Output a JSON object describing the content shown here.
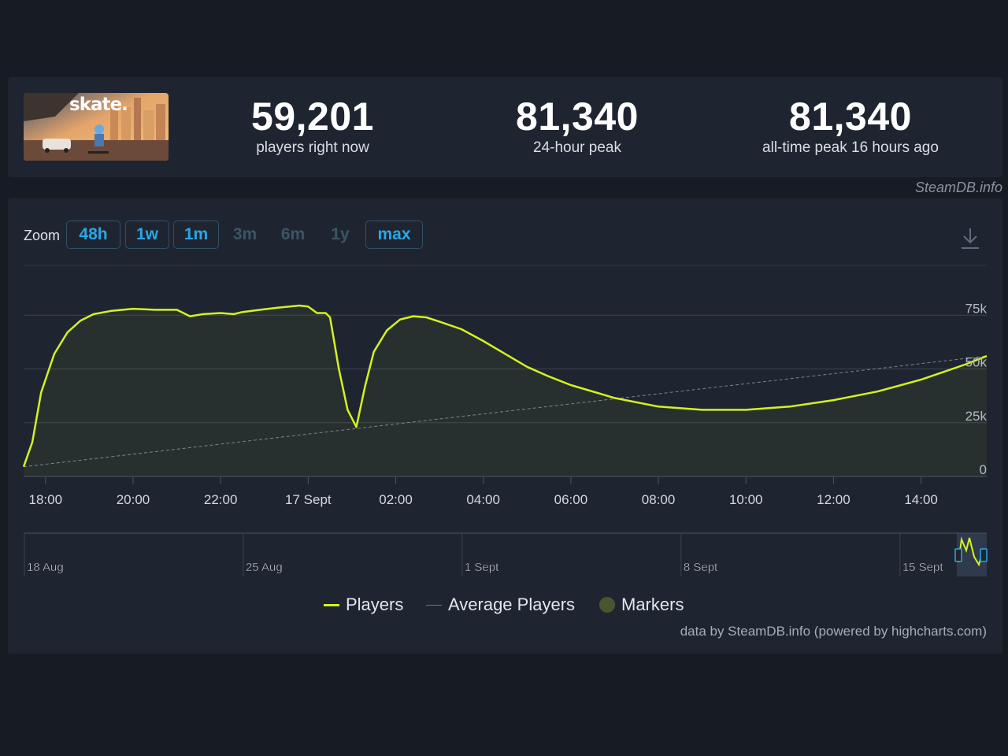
{
  "game": {
    "title": "skate.",
    "thumbnail_icon": "game-cover-image"
  },
  "stats": [
    {
      "value": "59,201",
      "label": "players right now"
    },
    {
      "value": "81,340",
      "label": "24-hour peak"
    },
    {
      "value": "81,340",
      "label": "all-time peak 16 hours ago"
    }
  ],
  "credit": "SteamDB.info",
  "zoom": {
    "label": "Zoom",
    "buttons": [
      {
        "label": "48h",
        "enabled": true
      },
      {
        "label": "1w",
        "enabled": true
      },
      {
        "label": "1m",
        "enabled": true
      },
      {
        "label": "3m",
        "enabled": false
      },
      {
        "label": "6m",
        "enabled": false
      },
      {
        "label": "1y",
        "enabled": false
      },
      {
        "label": "max",
        "enabled": true
      }
    ]
  },
  "download_icon": "download-icon",
  "colors": {
    "players_line": "#d4f21f",
    "average_line": "#9aa3b0",
    "markers": "#4a5530",
    "accent": "#2aa7e6",
    "background": "#171b23",
    "panel": "#1f2530"
  },
  "chart_data": {
    "type": "line",
    "x_tick_labels": [
      "18:00",
      "20:00",
      "22:00",
      "17 Sept",
      "02:00",
      "04:00",
      "06:00",
      "08:00",
      "10:00",
      "12:00",
      "14:00"
    ],
    "x_tick_hours": [
      0,
      2,
      4,
      6,
      8,
      10,
      12,
      14,
      16,
      18,
      20
    ],
    "x_range_hours": [
      -0.5,
      21.5
    ],
    "y_tick_labels": [
      "0",
      "25k",
      "50k",
      "75k"
    ],
    "y_tick_values": [
      0,
      25000,
      50000,
      75000
    ],
    "ylim": [
      0,
      100000
    ],
    "grid": true,
    "legend": "bottom-center",
    "series": [
      {
        "name": "Players",
        "x_hours": [
          -0.5,
          -0.3,
          -0.1,
          0.2,
          0.5,
          0.8,
          1.1,
          1.5,
          2.0,
          2.5,
          3.0,
          3.3,
          3.6,
          4.0,
          4.3,
          4.5,
          4.9,
          5.3,
          5.8,
          6.0,
          6.2,
          6.4,
          6.5,
          6.7,
          6.9,
          7.1,
          7.3,
          7.5,
          7.8,
          8.1,
          8.4,
          8.7,
          9.0,
          9.5,
          10.0,
          10.5,
          11.0,
          11.5,
          12.0,
          13.0,
          14.0,
          15.0,
          16.0,
          17.0,
          18.0,
          19.0,
          20.0,
          20.5,
          21.0,
          21.5
        ],
        "values": [
          4500,
          16000,
          39000,
          57000,
          67000,
          72500,
          75500,
          77000,
          78000,
          77500,
          77500,
          74500,
          75500,
          76000,
          75500,
          76500,
          77500,
          78500,
          79500,
          79000,
          76000,
          76000,
          74000,
          50000,
          31000,
          23000,
          42000,
          58000,
          68000,
          73000,
          74500,
          74000,
          72000,
          68500,
          63000,
          57000,
          51000,
          46500,
          42500,
          36500,
          32500,
          31000,
          31000,
          32500,
          35500,
          39500,
          45000,
          48500,
          52000,
          56000
        ]
      },
      {
        "name": "Average Players",
        "x_hours": [
          -0.5,
          21.5
        ],
        "values": [
          4500,
          56000
        ]
      }
    ],
    "navigator": {
      "labels": [
        "18 Aug",
        "25 Aug",
        "1 Sept",
        "8 Sept",
        "15 Sept"
      ]
    }
  },
  "legend": {
    "players": "Players",
    "average": "Average Players",
    "markers": "Markers"
  },
  "source_note": "data by SteamDB.info (powered by highcharts.com)"
}
